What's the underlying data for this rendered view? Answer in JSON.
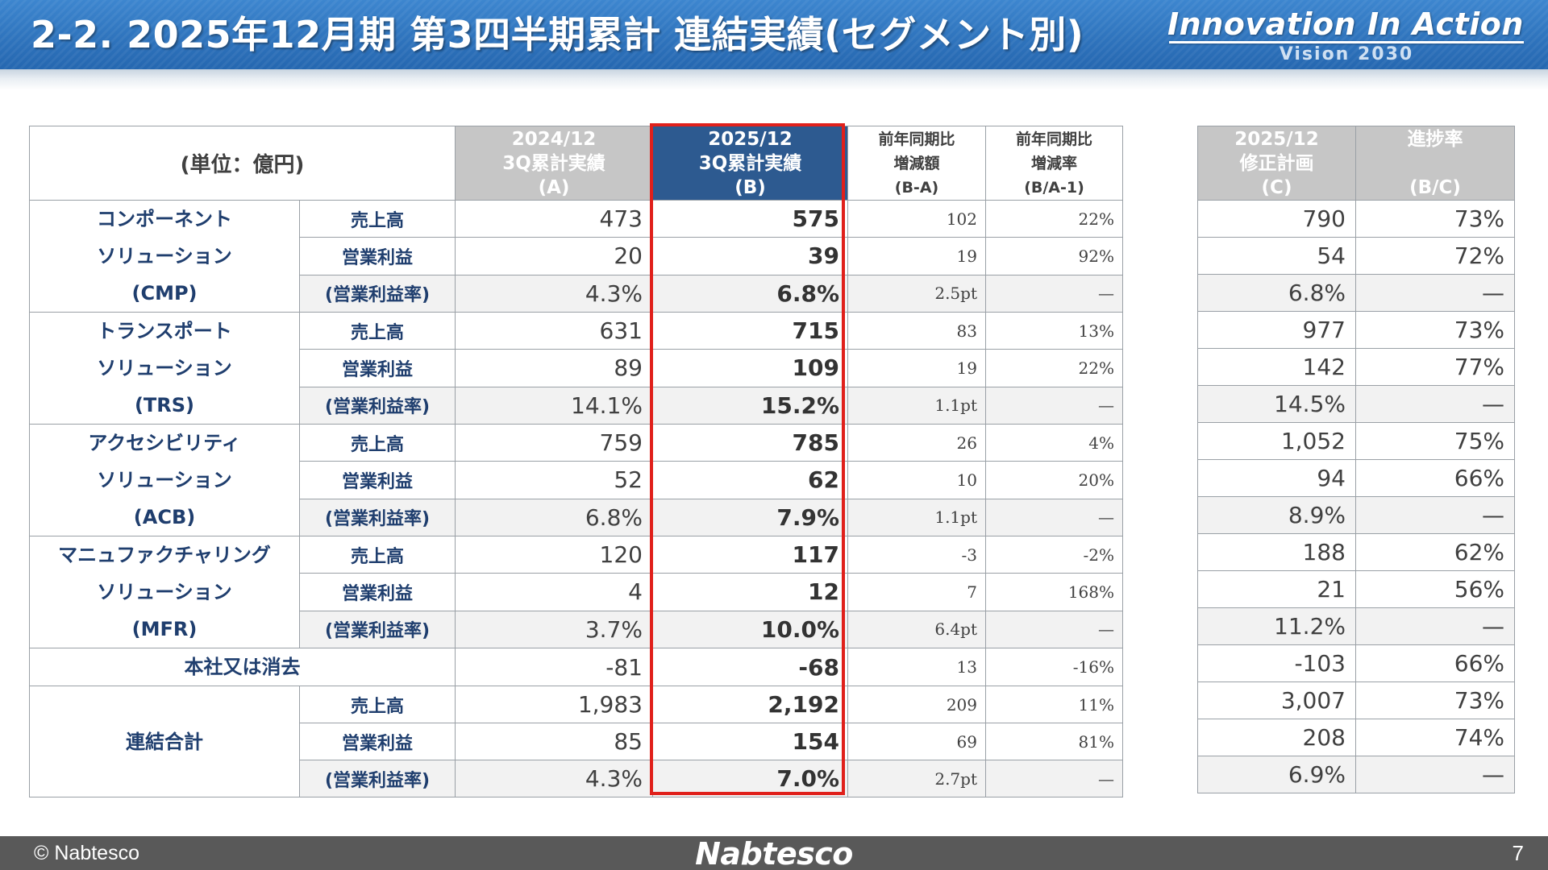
{
  "header": {
    "title": "2-2. 2025年12月期 第3四半期累計 連結実績(セグメント別)",
    "slogan": "Innovation In Action",
    "vision": "Vision 2030"
  },
  "table": {
    "unit_label": "(単位：億円)",
    "col_a": [
      "2024/12",
      "3Q累計実績",
      "(A)"
    ],
    "col_b": [
      "2025/12",
      "3Q累計実績",
      "(B)"
    ],
    "col_diff": [
      "前年同期比",
      "増減額",
      "(B-A)"
    ],
    "col_rate": [
      "前年同期比",
      "増減率",
      "(B/A-1)"
    ],
    "col_c": [
      "2025/12",
      "修正計画",
      "(C)"
    ],
    "col_progress": [
      "進捗率",
      "",
      "(B/C)"
    ],
    "segments": [
      {
        "name_lines": [
          "コンポーネント",
          "ソリューション",
          "(CMP)"
        ],
        "rows": [
          {
            "metric": "売上高",
            "a": "473",
            "b": "575",
            "diff": "102",
            "rate": "22%",
            "c": "790",
            "progress": "73%"
          },
          {
            "metric": "営業利益",
            "a": "20",
            "b": "39",
            "diff": "19",
            "rate": "92%",
            "c": "54",
            "progress": "72%"
          },
          {
            "metric": "(営業利益率)",
            "a": "4.3%",
            "b": "6.8%",
            "diff": "2.5pt",
            "rate": "—",
            "c": "6.8%",
            "progress": "—"
          }
        ]
      },
      {
        "name_lines": [
          "トランスポート",
          "ソリューション",
          "(TRS)"
        ],
        "rows": [
          {
            "metric": "売上高",
            "a": "631",
            "b": "715",
            "diff": "83",
            "rate": "13%",
            "c": "977",
            "progress": "73%"
          },
          {
            "metric": "営業利益",
            "a": "89",
            "b": "109",
            "diff": "19",
            "rate": "22%",
            "c": "142",
            "progress": "77%"
          },
          {
            "metric": "(営業利益率)",
            "a": "14.1%",
            "b": "15.2%",
            "diff": "1.1pt",
            "rate": "—",
            "c": "14.5%",
            "progress": "—"
          }
        ]
      },
      {
        "name_lines": [
          "アクセシビリティ",
          "ソリューション",
          "(ACB)"
        ],
        "rows": [
          {
            "metric": "売上高",
            "a": "759",
            "b": "785",
            "diff": "26",
            "rate": "4%",
            "c": "1,052",
            "progress": "75%"
          },
          {
            "metric": "営業利益",
            "a": "52",
            "b": "62",
            "diff": "10",
            "rate": "20%",
            "c": "94",
            "progress": "66%"
          },
          {
            "metric": "(営業利益率)",
            "a": "6.8%",
            "b": "7.9%",
            "diff": "1.1pt",
            "rate": "—",
            "c": "8.9%",
            "progress": "—"
          }
        ]
      },
      {
        "name_lines": [
          "マニュファクチャリング",
          "ソリューション",
          "(MFR)"
        ],
        "rows": [
          {
            "metric": "売上高",
            "a": "120",
            "b": "117",
            "diff": "-3",
            "rate": "-2%",
            "c": "188",
            "progress": "62%"
          },
          {
            "metric": "営業利益",
            "a": "4",
            "b": "12",
            "diff": "7",
            "rate": "168%",
            "c": "21",
            "progress": "56%"
          },
          {
            "metric": "(営業利益率)",
            "a": "3.7%",
            "b": "10.0%",
            "diff": "6.4pt",
            "rate": "—",
            "c": "11.2%",
            "progress": "—"
          }
        ]
      }
    ],
    "corporate": {
      "label": "本社又は消去",
      "a": "-81",
      "b": "-68",
      "diff": "13",
      "rate": "-16%",
      "c": "-103",
      "progress": "66%"
    },
    "total": {
      "label": "連結合計",
      "rows": [
        {
          "metric": "売上高",
          "a": "1,983",
          "b": "2,192",
          "diff": "209",
          "rate": "11%",
          "c": "3,007",
          "progress": "73%"
        },
        {
          "metric": "営業利益",
          "a": "85",
          "b": "154",
          "diff": "69",
          "rate": "81%",
          "c": "208",
          "progress": "74%"
        },
        {
          "metric": "(営業利益率)",
          "a": "4.3%",
          "b": "7.0%",
          "diff": "2.7pt",
          "rate": "—",
          "c": "6.9%",
          "progress": "—"
        }
      ]
    }
  },
  "footer": {
    "copyright": "© Nabtesco",
    "logo": "Nabtesco",
    "page_number": "7"
  },
  "colors": {
    "header_blue": "#2f74bd",
    "highlight_red": "#e0201b",
    "column_b_header": "#2d5a90",
    "gray_header": "#c6c6c6",
    "segment_text": "#1f3e6e",
    "footer_gray": "#595959"
  }
}
